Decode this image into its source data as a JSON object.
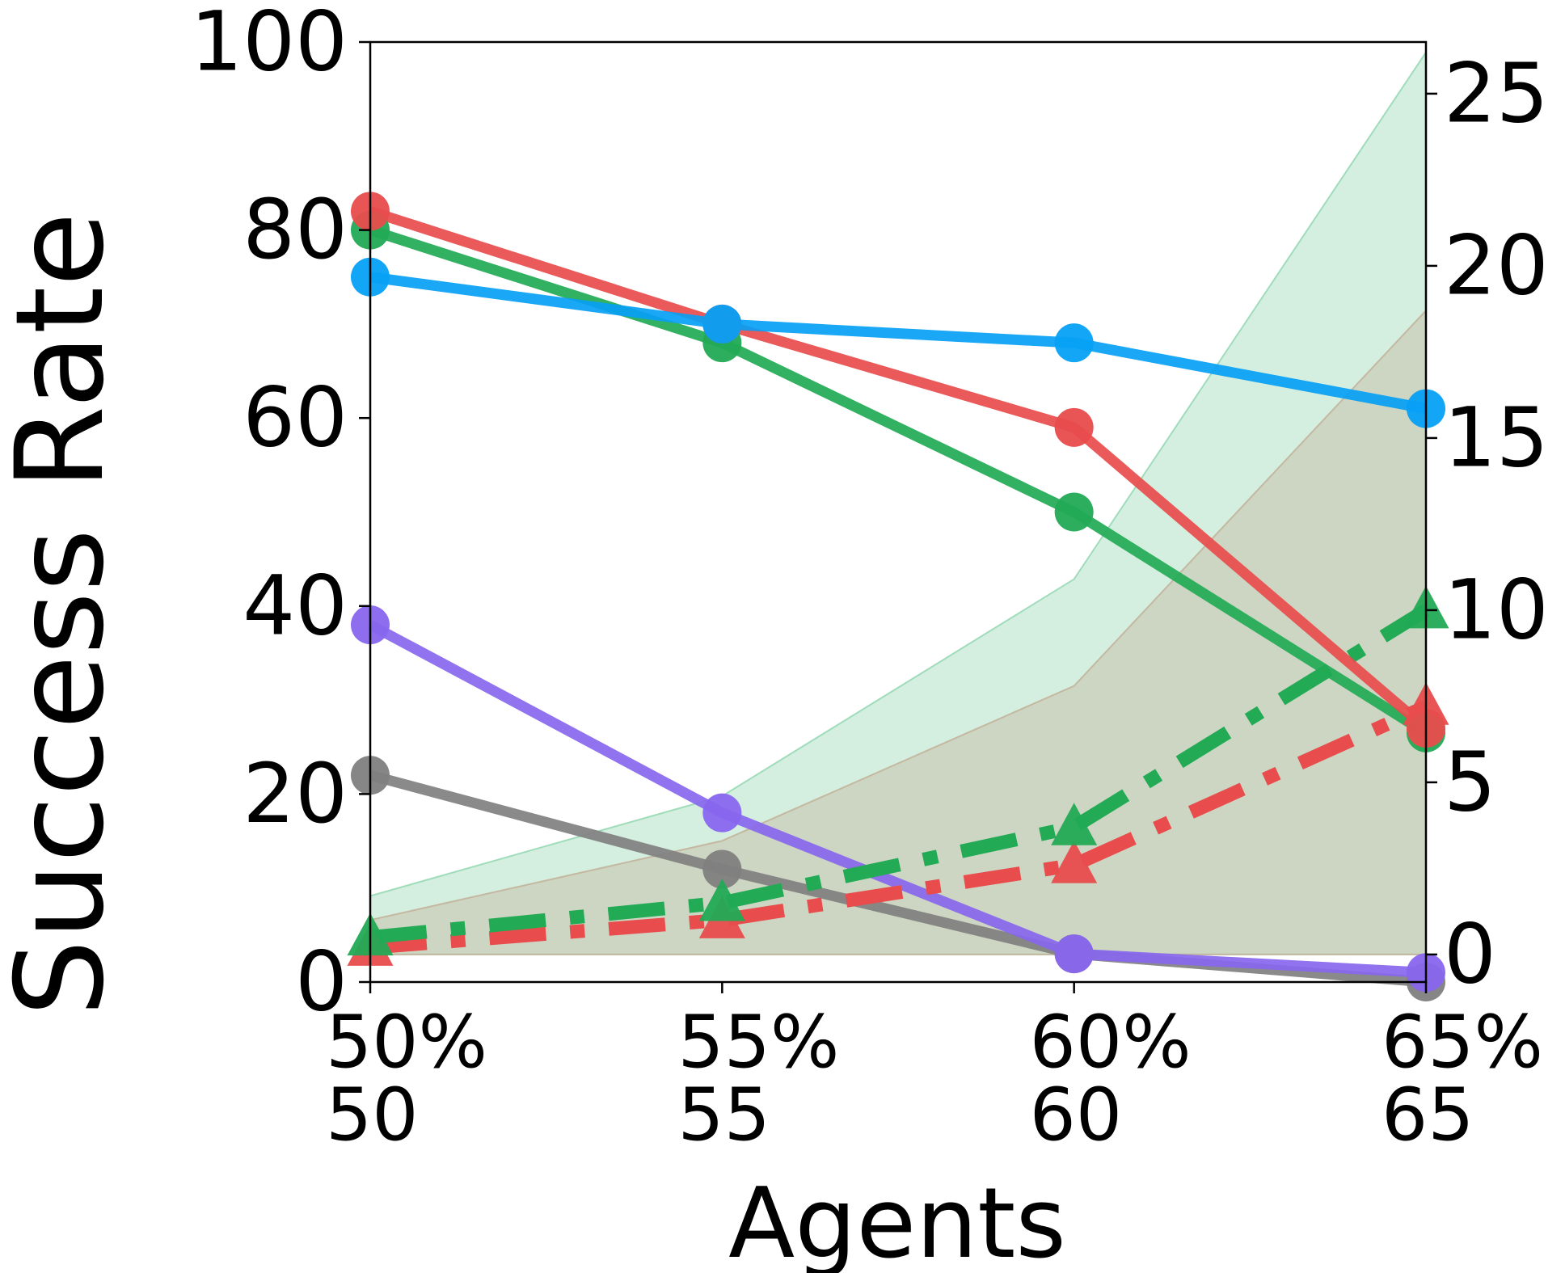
{
  "chart_data": {
    "type": "line",
    "ylabel": "Success Rate",
    "xlabel": "Agents",
    "categories": [
      [
        "50%",
        "50"
      ],
      [
        "55%",
        "55"
      ],
      [
        "60%",
        "60"
      ],
      [
        "65%",
        "65"
      ]
    ],
    "ylim": [
      0,
      100
    ],
    "yticks": [
      "0",
      "20",
      "40",
      "60",
      "80",
      "100"
    ],
    "y2lim": [
      -0.8,
      26.5
    ],
    "y2ticks": [
      "0",
      "5",
      "10",
      "15",
      "20",
      "25"
    ],
    "grid": false,
    "series": [
      {
        "color": "#e84c4c",
        "style": "solid",
        "marker": "circle",
        "axis": "left",
        "values": [
          82,
          70,
          59,
          27
        ]
      },
      {
        "color": "#22aa55",
        "style": "solid",
        "marker": "circle",
        "axis": "left",
        "values": [
          80,
          68,
          50,
          26.5
        ]
      },
      {
        "color": "#06a0f5",
        "style": "solid",
        "marker": "circle",
        "axis": "left",
        "values": [
          75,
          70,
          68,
          61
        ]
      },
      {
        "color": "#8866ee",
        "style": "solid",
        "marker": "circle",
        "axis": "left",
        "values": [
          38,
          18,
          3,
          1
        ]
      },
      {
        "color": "#808080",
        "style": "solid",
        "marker": "circle",
        "axis": "left",
        "values": [
          22,
          12,
          3,
          0
        ]
      },
      {
        "color": "#e84c4c",
        "style": "dashdot",
        "marker": "triangle",
        "axis": "right",
        "values": [
          0.2,
          1.0,
          2.6,
          7.2
        ]
      },
      {
        "color": "#22aa55",
        "style": "dashdot",
        "marker": "triangle",
        "axis": "right",
        "values": [
          0.5,
          1.5,
          3.7,
          10
        ]
      }
    ],
    "areas": [
      {
        "color": "#9fdcba",
        "axis": "right",
        "values": [
          1.7,
          4.6,
          10.9,
          26.2
        ]
      },
      {
        "color": "#c4b8a0",
        "axis": "right",
        "values": [
          1.0,
          3.3,
          7.8,
          18.7
        ]
      }
    ]
  }
}
